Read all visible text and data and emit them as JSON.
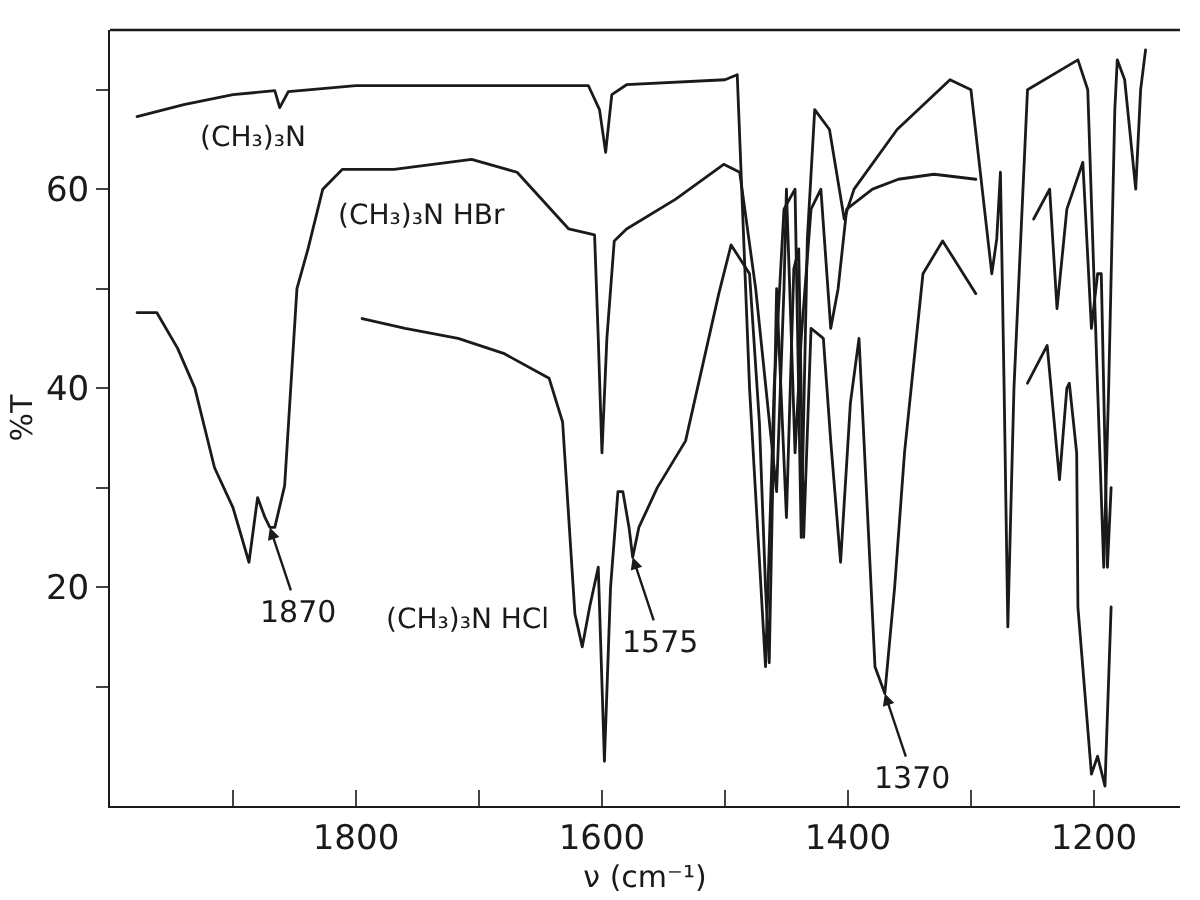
{
  "chart_data": {
    "type": "line",
    "xlabel": "ν (cm⁻¹)",
    "ylabel": "%T",
    "xlim": [
      2000,
      1130
    ],
    "ylim": [
      -2,
      76
    ],
    "xticks": [
      {
        "value": 1900,
        "label": null
      },
      1800,
      {
        "value": 1700,
        "label": null
      },
      1600,
      {
        "value": 1500,
        "label": null
      },
      1400,
      {
        "value": 1300,
        "label": null
      },
      1200
    ],
    "yticks": [
      {
        "value": 10,
        "label": null
      },
      20,
      {
        "value": 30,
        "label": null
      },
      40,
      {
        "value": 50,
        "label": null
      },
      60,
      {
        "value": 70,
        "label": null
      }
    ],
    "legend": false,
    "marker": "none",
    "line_style": "solid",
    "series": [
      {
        "name": "(CH₃)₃N",
        "color": "#1a1a1a",
        "x": [
          1978,
          1940,
          1900,
          1866,
          1862,
          1855,
          1800,
          1700,
          1611,
          1602,
          1597,
          1592,
          1580,
          1500,
          1490,
          1480,
          1467,
          1460,
          1452,
          1443,
          1438,
          1433,
          1427,
          1415,
          1403,
          1395,
          1360,
          1317,
          1300,
          1283,
          1279,
          1276,
          1273,
          1270,
          1265,
          1254,
          1213,
          1205,
          1197,
          1192,
          1188,
          1183,
          1181,
          1175,
          1166,
          1162,
          1158
        ],
        "values": [
          67.3,
          68.5,
          69.5,
          69.9,
          68.2,
          69.8,
          70.4,
          70.4,
          70.4,
          68,
          63.7,
          69.5,
          70.5,
          71,
          71.5,
          40,
          12,
          40,
          58,
          60,
          25,
          55,
          68,
          66,
          57,
          60,
          66,
          71,
          70,
          51.5,
          55,
          61.7,
          40,
          16,
          40,
          70,
          73,
          70,
          40,
          22,
          40,
          68,
          73,
          71,
          60,
          70,
          74
        ]
      },
      {
        "name": "(CH₃)₃N HBr",
        "color": "#1a1a1a",
        "x": [
          1978,
          1962,
          1945,
          1931,
          1915,
          1900,
          1887,
          1880,
          1874,
          1870,
          1866,
          1858,
          1848,
          1839,
          1827,
          1811,
          1769,
          1706,
          1669,
          1627,
          1606,
          1603,
          1600,
          1596,
          1590,
          1580,
          1540,
          1501,
          1488,
          1475,
          1458,
          1452,
          1450,
          1446,
          1443,
          1438,
          1430,
          1422,
          1414,
          1408,
          1401,
          1380,
          1359,
          1330,
          1296,
          null,
          1249,
          1236,
          1230,
          1222,
          1209,
          1202,
          1197,
          1194,
          1189,
          1186
        ],
        "values": [
          47.6,
          47.6,
          44,
          40,
          32,
          28,
          22.5,
          29,
          27,
          26,
          26,
          30.2,
          50,
          54,
          60,
          62,
          62,
          63,
          61.7,
          56,
          55.4,
          45,
          33.5,
          45,
          54.8,
          56,
          59,
          62.5,
          61.7,
          50,
          29.6,
          50,
          60,
          45,
          33.5,
          45,
          58,
          60,
          46,
          50,
          58,
          60,
          61,
          61.5,
          61,
          null,
          57,
          60,
          48,
          58,
          62.7,
          46,
          51.5,
          51.5,
          22,
          30
        ]
      },
      {
        "name": "(CH₃)₃N HCl",
        "color": "#1a1a1a",
        "x": [
          1795,
          1760,
          1717,
          1680,
          1643,
          1632,
          1622,
          1616,
          1610,
          1603,
          1598,
          1593,
          1587,
          1583,
          1578,
          1575,
          1570,
          1555,
          1532,
          1505,
          1495,
          1480,
          1472,
          1467,
          1464,
          1458,
          1450,
          1444,
          1440,
          1436,
          1430,
          1420,
          1414,
          1406,
          1398,
          1391,
          1378,
          1370,
          1362,
          1354,
          1339,
          1323,
          1296,
          null,
          1254,
          1238,
          1228,
          1222,
          1220,
          1214,
          1213,
          1202,
          1197,
          1191,
          1186
        ],
        "values": [
          47,
          46,
          45,
          43.5,
          41,
          36.6,
          17.3,
          14,
          18,
          22,
          2.5,
          20,
          29.6,
          29.6,
          26,
          23,
          26,
          30,
          34.7,
          49.5,
          54.4,
          51.5,
          36.6,
          20,
          12.4,
          50,
          27,
          52,
          54,
          25,
          46,
          45,
          34.7,
          22.5,
          38.5,
          45,
          12,
          9.3,
          20,
          33.5,
          51.5,
          54.8,
          49.5,
          null,
          40.5,
          44.3,
          30.8,
          40,
          40.5,
          33.5,
          18,
          1.2,
          3,
          0,
          18
        ]
      }
    ],
    "annotations": [
      {
        "text": "1870",
        "x": 1870,
        "y": 26
      },
      {
        "text": "1575",
        "x": 1575,
        "y": 23
      },
      {
        "text": "1370",
        "x": 1370,
        "y": 9.3
      }
    ]
  }
}
